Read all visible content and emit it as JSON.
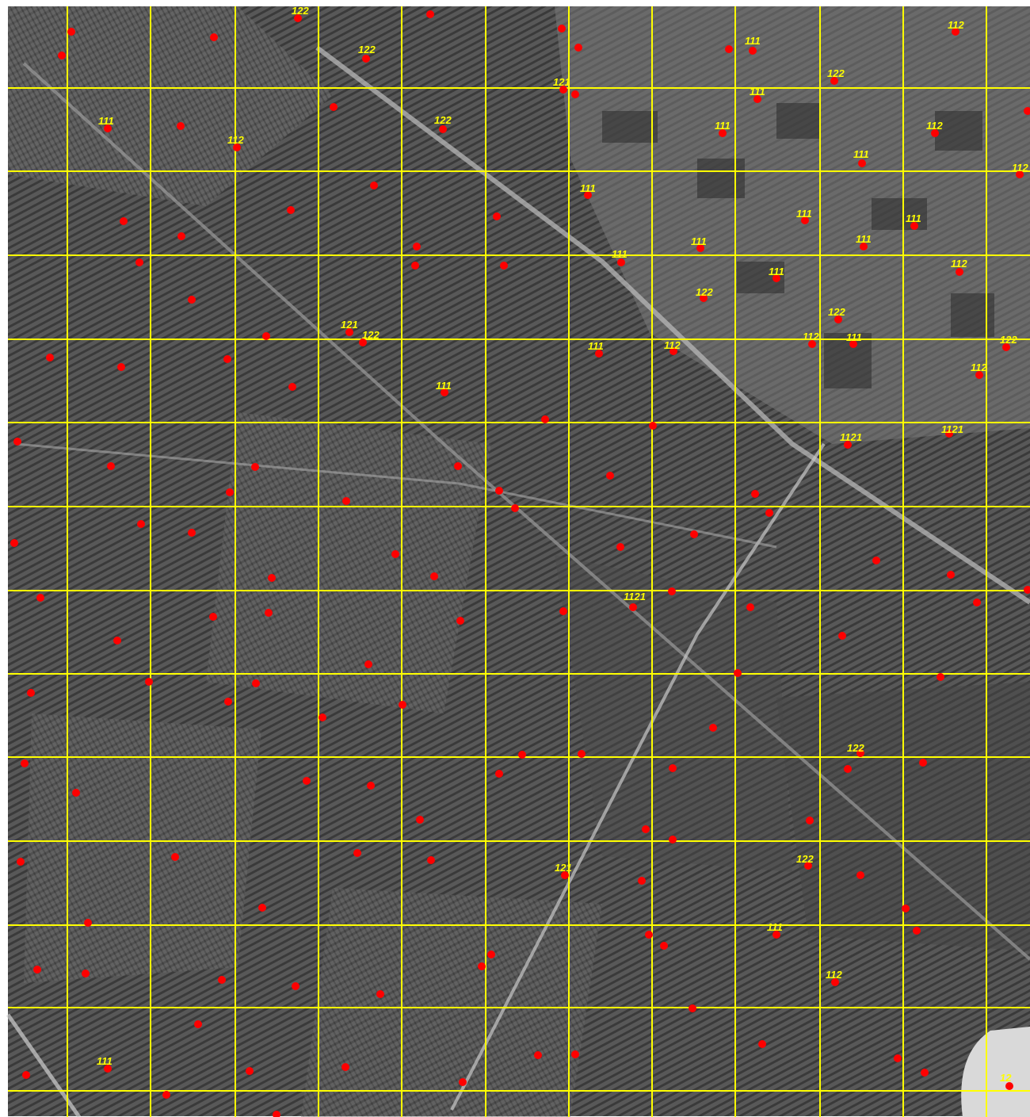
{
  "map": {
    "grid_color": "#ffff00",
    "point_color": "#ff0000",
    "label_color": "#ffff00",
    "labels": [
      "122",
      "122",
      "111",
      "112",
      "111",
      "122",
      "111",
      "122",
      "112",
      "111",
      "121",
      "112",
      "111",
      "112",
      "111",
      "111",
      "111",
      "111",
      "111",
      "111",
      "111",
      "112",
      "122",
      "122",
      "121",
      "122",
      "111",
      "112",
      "112",
      "111",
      "122",
      "112",
      "111",
      "1121",
      "1121",
      "1121",
      "122",
      "121",
      "122",
      "111",
      "112",
      "111",
      "12"
    ]
  }
}
